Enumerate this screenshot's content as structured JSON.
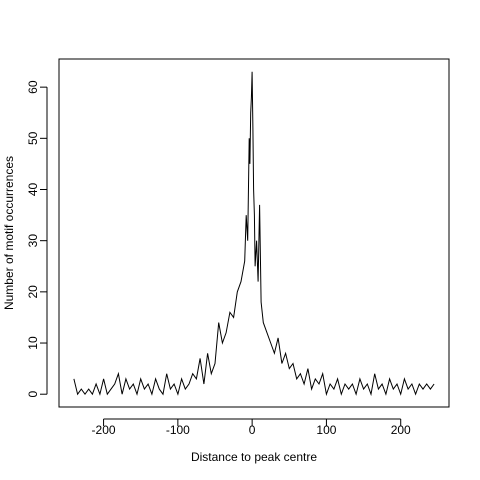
{
  "chart_data": {
    "type": "line",
    "title": "",
    "xlabel": "Distance to peak centre",
    "ylabel": "Number of motif occurrences",
    "xlim": [
      -260,
      265
    ],
    "ylim": [
      -2.5,
      65.5
    ],
    "xticks": [
      -200,
      -100,
      0,
      100,
      200
    ],
    "yticks": [
      0,
      10,
      20,
      30,
      40,
      50,
      60
    ],
    "xtick_labels": [
      "-200",
      "-100",
      "0",
      "100",
      "200"
    ],
    "ytick_labels": [
      "0",
      "10",
      "20",
      "30",
      "40",
      "50",
      "60"
    ],
    "grid": false,
    "legend": "none",
    "line_color": "#000000",
    "series": [
      {
        "x": [
          -240,
          -235,
          -230,
          -225,
          -220,
          -215,
          -210,
          -205,
          -200,
          -195,
          -190,
          -185,
          -180,
          -175,
          -170,
          -165,
          -160,
          -155,
          -150,
          -145,
          -140,
          -135,
          -130,
          -125,
          -120,
          -115,
          -110,
          -105,
          -100,
          -95,
          -90,
          -85,
          -80,
          -75,
          -70,
          -65,
          -60,
          -55,
          -50,
          -45,
          -40,
          -35,
          -30,
          -25,
          -20,
          -15,
          -10,
          -8,
          -6,
          -4,
          -3,
          -2,
          -1,
          0,
          1,
          2,
          3,
          4,
          6,
          8,
          10,
          12,
          15,
          20,
          25,
          30,
          35,
          40,
          45,
          50,
          55,
          60,
          65,
          70,
          75,
          80,
          85,
          90,
          95,
          100,
          105,
          110,
          115,
          120,
          125,
          130,
          135,
          140,
          145,
          150,
          155,
          160,
          165,
          170,
          175,
          180,
          185,
          190,
          195,
          200,
          205,
          210,
          215,
          220,
          225,
          230,
          235,
          240,
          245
        ],
        "values": [
          3,
          0,
          1,
          0,
          1,
          0,
          2,
          0,
          3,
          0,
          1,
          2,
          4,
          0,
          3,
          1,
          2,
          0,
          3,
          1,
          2,
          0,
          3,
          1,
          0,
          4,
          1,
          2,
          0,
          3,
          1,
          2,
          4,
          3,
          7,
          2,
          8,
          4,
          6,
          14,
          10,
          12,
          16,
          15,
          20,
          22,
          26,
          35,
          30,
          50,
          45,
          55,
          58,
          63,
          52,
          40,
          35,
          25,
          30,
          22,
          37,
          18,
          14,
          12,
          10,
          8,
          11,
          6,
          8,
          5,
          6,
          3,
          4,
          2,
          5,
          1,
          3,
          2,
          4,
          0,
          2,
          1,
          3,
          0,
          2,
          1,
          2,
          0,
          3,
          1,
          2,
          0,
          4,
          1,
          2,
          0,
          3,
          1,
          2,
          0,
          3,
          1,
          2,
          0,
          2,
          1,
          2,
          1,
          2
        ]
      }
    ]
  }
}
